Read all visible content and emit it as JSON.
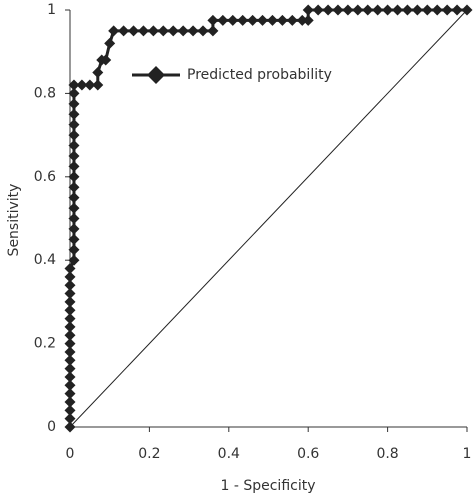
{
  "chart_data": {
    "type": "line",
    "xlabel": "1 - Specificity",
    "ylabel": "Sensitivity",
    "xlim": [
      0,
      1
    ],
    "ylim": [
      0,
      1
    ],
    "xticks": [
      0,
      0.2,
      0.4,
      0.6,
      0.8,
      1
    ],
    "yticks": [
      0,
      0.2,
      0.4,
      0.6,
      0.8,
      1
    ],
    "legend": "upper left",
    "series": [
      {
        "name": "Predicted probability",
        "color": "#222222",
        "marker": "diamond",
        "x": [
          0,
          0,
          0,
          0,
          0,
          0,
          0,
          0,
          0,
          0,
          0,
          0,
          0,
          0,
          0,
          0,
          0,
          0,
          0,
          0,
          0.01,
          0.01,
          0.01,
          0.01,
          0.01,
          0.01,
          0.01,
          0.01,
          0.01,
          0.01,
          0.01,
          0.01,
          0.01,
          0.01,
          0.01,
          0.01,
          0.01,
          0.01,
          0.03,
          0.05,
          0.07,
          0.07,
          0.08,
          0.09,
          0.1,
          0.11,
          0.135,
          0.16,
          0.185,
          0.21,
          0.235,
          0.26,
          0.285,
          0.31,
          0.335,
          0.36,
          0.36,
          0.385,
          0.41,
          0.435,
          0.46,
          0.485,
          0.51,
          0.535,
          0.56,
          0.585,
          0.6,
          0.6,
          0.625,
          0.65,
          0.675,
          0.7,
          0.725,
          0.75,
          0.775,
          0.8,
          0.825,
          0.85,
          0.875,
          0.9,
          0.925,
          0.95,
          0.975,
          1
        ],
        "values": [
          0,
          0.02,
          0.04,
          0.06,
          0.08,
          0.1,
          0.12,
          0.14,
          0.16,
          0.18,
          0.2,
          0.22,
          0.24,
          0.26,
          0.28,
          0.3,
          0.32,
          0.34,
          0.36,
          0.38,
          0.4,
          0.425,
          0.45,
          0.475,
          0.5,
          0.525,
          0.55,
          0.575,
          0.6,
          0.625,
          0.65,
          0.675,
          0.7,
          0.725,
          0.75,
          0.775,
          0.8,
          0.82,
          0.82,
          0.82,
          0.82,
          0.85,
          0.88,
          0.88,
          0.92,
          0.95,
          0.95,
          0.95,
          0.95,
          0.95,
          0.95,
          0.95,
          0.95,
          0.95,
          0.95,
          0.95,
          0.975,
          0.975,
          0.975,
          0.975,
          0.975,
          0.975,
          0.975,
          0.975,
          0.975,
          0.975,
          0.975,
          1,
          1,
          1,
          1,
          1,
          1,
          1,
          1,
          1,
          1,
          1,
          1,
          1,
          1,
          1,
          1,
          1
        ]
      }
    ]
  }
}
